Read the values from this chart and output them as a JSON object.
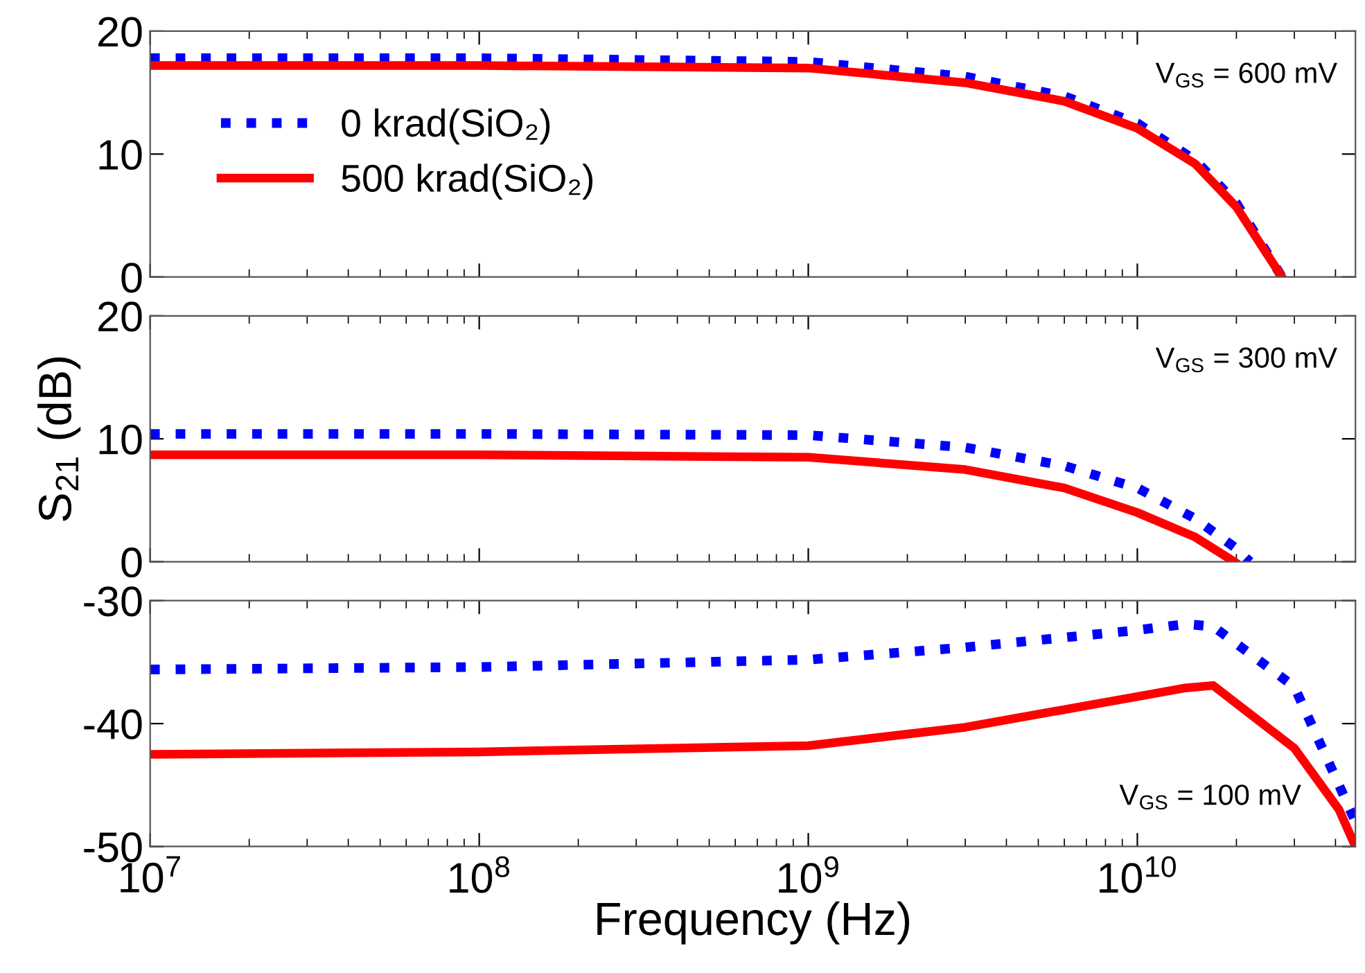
{
  "chart_data": [
    {
      "type": "line",
      "x": [
        10000000.0,
        100000000.0,
        1000000000.0,
        3000000000.0,
        6000000000.0,
        10000000000.0,
        15000000000.0,
        20000000000.0,
        27500000000.0
      ],
      "log": "x",
      "xlim": [
        10000000.0,
        46000000000.0
      ],
      "ylim": [
        0,
        20
      ],
      "yticks": [
        0,
        10,
        20
      ],
      "tick_labels": "y",
      "legend": "left",
      "grid": false,
      "xticks": [
        {
          "value": 10000000.0,
          "label": null
        },
        {
          "value": 100000000.0,
          "label": null
        },
        {
          "value": 1000000000.0,
          "label": null
        },
        {
          "value": 10000000000.0,
          "label": null
        }
      ],
      "annotations": [
        "V$_{GS}$ = 600 mV"
      ],
      "series": [
        {
          "name": "0 krad(SiO₂)",
          "color": "#0000ff",
          "line_style": "dotted",
          "values": [
            17.8,
            17.8,
            17.5,
            16.3,
            14.7,
            12.5,
            9.5,
            6,
            0
          ]
        },
        {
          "name": "500 krad(SiO₂)",
          "color": "#ff0000",
          "line_style": "solid",
          "values": [
            17.2,
            17.2,
            17,
            15.8,
            14.3,
            12.1,
            9.2,
            5.7,
            0
          ]
        }
      ]
    },
    {
      "type": "line",
      "x": [
        10000000.0,
        100000000.0,
        1000000000.0,
        3000000000.0,
        6000000000.0,
        10000000000.0,
        15000000000.0,
        19700000000.0,
        22000000000.0
      ],
      "log": "x",
      "xlim": [
        10000000.0,
        46000000000.0
      ],
      "ylim": [
        0,
        20
      ],
      "yticks": [
        0,
        10,
        20
      ],
      "tick_labels": "y",
      "grid": false,
      "xticks": [
        {
          "value": 10000000.0,
          "label": null
        },
        {
          "value": 100000000.0,
          "label": null
        },
        {
          "value": 1000000000.0,
          "label": null
        },
        {
          "value": 10000000000.0,
          "label": null
        }
      ],
      "ylabel": "S$_{21}$ (dB)",
      "annotations": [
        "V$_{GS}$ = 300 mV"
      ],
      "series": [
        {
          "color": "#0000ff",
          "line_style": "dotted",
          "values": [
            10.4,
            10.4,
            10.3,
            9.3,
            7.8,
            6,
            3.5,
            1.2,
            0
          ]
        },
        {
          "color": "#ff0000",
          "line_style": "solid",
          "values": [
            8.7,
            8.7,
            8.5,
            7.5,
            6,
            4,
            2,
            0,
            null
          ]
        }
      ]
    },
    {
      "type": "line",
      "x": [
        10000000.0,
        100000000.0,
        1000000000.0,
        3000000000.0,
        10000000000.0,
        14000000000.0,
        17000000000.0,
        30000000000.0,
        41000000000.0,
        46000000000.0
      ],
      "log": "x",
      "xlim": [
        10000000.0,
        46000000000.0
      ],
      "ylim": [
        -50,
        -30
      ],
      "yticks": [
        -50,
        -40,
        -30
      ],
      "grid": false,
      "xticks": [
        {
          "value": 10000000.0,
          "label": "10$^{7}$"
        },
        {
          "value": 100000000.0,
          "label": "10$^{8}$"
        },
        {
          "value": 1000000000.0,
          "label": "10$^{9}$"
        },
        {
          "value": 10000000000.0,
          "label": "10$^{10}$"
        }
      ],
      "xlabel": "Frequency (Hz)",
      "annotations": [
        "V$_{GS}$ = 100 mV"
      ],
      "series": [
        {
          "color": "#0000ff",
          "line_style": "dotted",
          "values": [
            -35.6,
            -35.4,
            -34.8,
            -33.8,
            -32.4,
            -31.9,
            -32.1,
            -37,
            -45,
            -48
          ]
        },
        {
          "color": "#ff0000",
          "line_style": "solid",
          "values": [
            -42.5,
            -42.3,
            -41.8,
            -40.3,
            -37.8,
            -37.1,
            -36.9,
            -42,
            -47,
            -50
          ]
        }
      ]
    }
  ]
}
